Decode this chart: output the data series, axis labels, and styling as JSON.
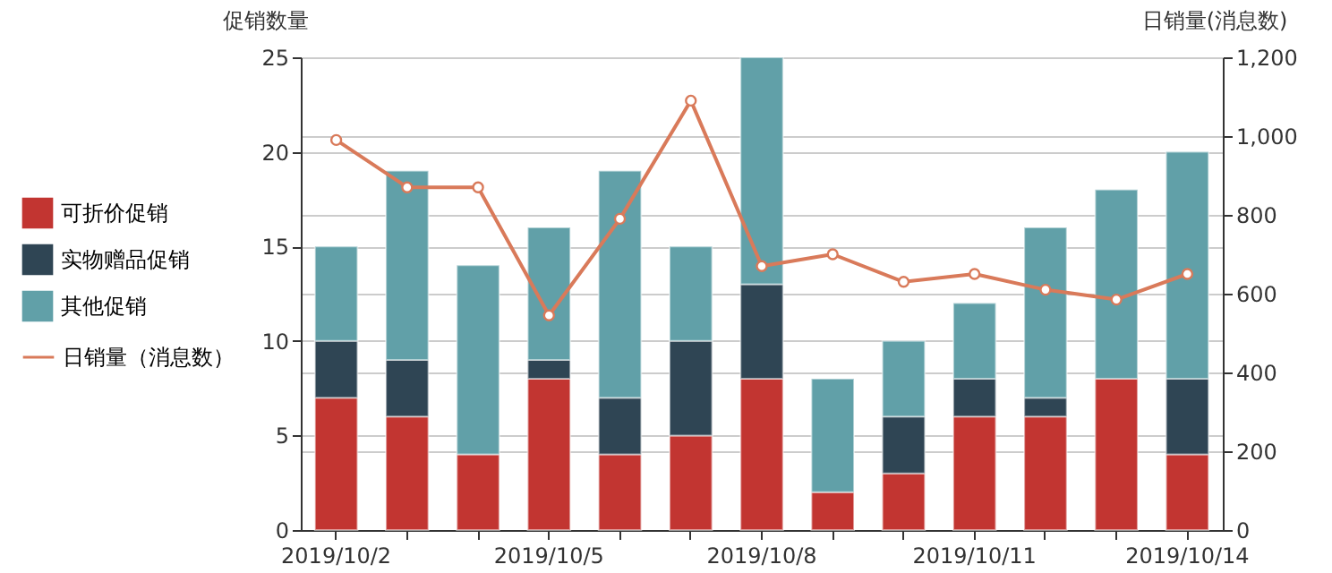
{
  "chart_data": {
    "type": "bar",
    "stacked": true,
    "categories": [
      "2019/10/2",
      null,
      null,
      "2019/10/5",
      null,
      null,
      "2019/10/8",
      null,
      null,
      "2019/10/11",
      null,
      null,
      "2019/10/14"
    ],
    "ylabel": "促销数量",
    "y2label": "日销量(消息数)",
    "ylim": [
      0,
      25
    ],
    "yticks": [
      0,
      5,
      10,
      15,
      20,
      25
    ],
    "y2lim": [
      0,
      1200
    ],
    "y2ticks": [
      0,
      {
        "value": 200,
        "label": "200"
      },
      {
        "value": 400,
        "label": "400"
      },
      {
        "value": 600,
        "label": "600"
      },
      {
        "value": 800,
        "label": "800"
      },
      {
        "value": 1000,
        "label": "1,000"
      },
      {
        "value": 1200,
        "label": "1,200"
      }
    ],
    "grid": true,
    "legend": "left",
    "series": [
      {
        "name": "可折价促销",
        "color": "#c23531",
        "values": [
          7,
          6,
          4,
          8,
          4,
          5,
          8,
          2,
          3,
          6,
          6,
          8,
          4
        ]
      },
      {
        "name": "实物赠品促销",
        "color": "#2f4554",
        "values": [
          3,
          3,
          0,
          1,
          3,
          5,
          5,
          0,
          3,
          2,
          1,
          0,
          4
        ]
      },
      {
        "name": "其他促销",
        "color": "#61a0a8",
        "values": [
          5,
          10,
          10,
          7,
          12,
          5,
          12,
          6,
          4,
          4,
          9,
          10,
          12
        ]
      },
      {
        "name": "日销量（消息数）",
        "type": "line",
        "axis": "y2",
        "color": "#d97a5a",
        "marker": "circle",
        "values": [
          990,
          870,
          870,
          545,
          790,
          1090,
          670,
          700,
          630,
          650,
          610,
          585,
          650
        ]
      }
    ]
  }
}
